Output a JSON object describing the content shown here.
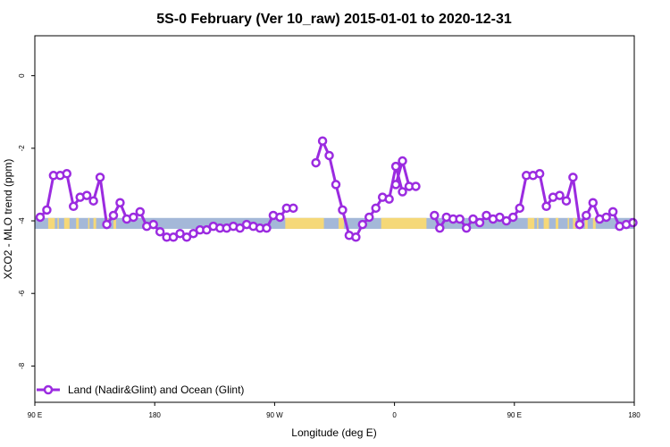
{
  "chart_data": {
    "type": "line",
    "title": "5S-0 February (Ver 10_raw)   2015-01-01 to 2020-12-31",
    "xlabel": "Longitude (deg E)",
    "ylabel": "XCO2 - MLO trend (ppm)",
    "xlim": [
      90,
      540
    ],
    "ylim": [
      -9.0,
      1.1
    ],
    "x_ticks": [
      {
        "value": 90,
        "label": "90 E"
      },
      {
        "value": 180,
        "label": "180"
      },
      {
        "value": 270,
        "label": "90 W"
      },
      {
        "value": 360,
        "label": "0"
      },
      {
        "value": 450,
        "label": "90 E"
      },
      {
        "value": 540,
        "label": "180"
      }
    ],
    "y_ticks": [
      {
        "value": 0,
        "label": "0"
      },
      {
        "value": -2,
        "label": "-2"
      },
      {
        "value": -4,
        "label": "-4"
      },
      {
        "value": -6,
        "label": "-6"
      },
      {
        "value": -8,
        "label": "-8"
      }
    ],
    "surface_band": {
      "y_range": [
        -4.22,
        -3.92
      ],
      "ocean_color": "#a4b8d8",
      "land_color": "#f5d878",
      "land_segments": [
        [
          100,
          105
        ],
        [
          107,
          108
        ],
        [
          112,
          116
        ],
        [
          121,
          123
        ],
        [
          130,
          131
        ],
        [
          134,
          136
        ],
        [
          143,
          145
        ],
        [
          149,
          151
        ],
        [
          278,
          307
        ],
        [
          318,
          322
        ],
        [
          350,
          384
        ],
        [
          460,
          465
        ],
        [
          467,
          468
        ],
        [
          472,
          476
        ],
        [
          481,
          483
        ],
        [
          490,
          491
        ],
        [
          494,
          496
        ],
        [
          503,
          505
        ],
        [
          509,
          511
        ]
      ]
    },
    "legend": {
      "label": "Land (Nadir&Glint) and Ocean (Glint)",
      "position": "bottom-left"
    },
    "series": [
      {
        "name": "Land (Nadir&Glint) and Ocean (Glint)",
        "color": "#9b2be0",
        "segments": [
          {
            "x": [
              94,
              99,
              104,
              109,
              114,
              119,
              124,
              129,
              134,
              139,
              144,
              149,
              154,
              159,
              164,
              169,
              174,
              179,
              184,
              189,
              194,
              199,
              204,
              209,
              214,
              219,
              224,
              229,
              234,
              239,
              244,
              249,
              254,
              259,
              264,
              269,
              274,
              279,
              284
            ],
            "y": [
              -3.9,
              -3.7,
              -2.75,
              -2.75,
              -2.7,
              -3.6,
              -3.35,
              -3.3,
              -3.45,
              -2.8,
              -4.1,
              -3.85,
              -3.5,
              -3.95,
              -3.9,
              -3.75,
              -4.15,
              -4.1,
              -4.3,
              -4.45,
              -4.45,
              -4.35,
              -4.45,
              -4.35,
              -4.25,
              -4.25,
              -4.15,
              -4.2,
              -4.2,
              -4.15,
              -4.2,
              -4.1,
              -4.15,
              -4.2,
              -4.2,
              -3.85,
              -3.9,
              -3.65,
              -3.65
            ]
          },
          {
            "x": [
              301,
              306,
              311,
              316,
              321,
              326,
              331,
              336,
              341,
              346,
              351,
              356,
              361,
              366
            ],
            "y": [
              -2.4,
              -1.8,
              -2.2,
              -3.0,
              -3.7,
              -4.4,
              -4.45,
              -4.1,
              -3.9,
              -3.65,
              -3.35,
              -3.4,
              -2.5,
              -3.2
            ]
          },
          {
            "x": [
              361,
              366,
              371,
              376
            ],
            "y": [
              -3.0,
              -2.35,
              -3.05,
              -3.05
            ]
          },
          {
            "x": [
              390,
              394,
              399,
              404,
              409,
              414,
              419,
              424,
              429,
              434,
              439,
              444,
              449,
              454,
              459,
              464,
              469,
              474,
              479,
              484,
              489,
              494,
              499,
              504,
              509,
              514,
              519,
              524,
              529,
              534,
              539
            ],
            "y": [
              -3.85,
              -4.2,
              -3.9,
              -3.95,
              -3.95,
              -4.2,
              -3.95,
              -4.05,
              -3.85,
              -3.95,
              -3.9,
              -4.0,
              -3.9,
              -3.65,
              -2.75,
              -2.75,
              -2.7,
              -3.6,
              -3.35,
              -3.3,
              -3.45,
              -2.8,
              -4.1,
              -3.85,
              -3.5,
              -3.95,
              -3.9,
              -3.75,
              -4.15,
              -4.1,
              -4.05
            ]
          }
        ]
      }
    ]
  }
}
